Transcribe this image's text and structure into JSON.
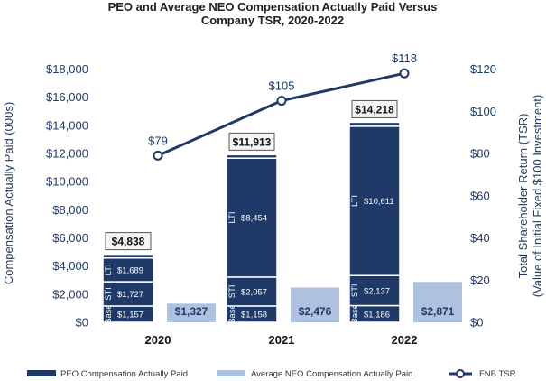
{
  "chart_data": {
    "type": "bar",
    "title_lines": [
      "PEO and Average NEO Compensation Actually Paid Versus",
      "Company TSR, 2020-2022"
    ],
    "categories": [
      "2020",
      "2021",
      "2022"
    ],
    "ylabel": "Compensation Actually Paid (000s)",
    "y2label_lines": [
      "Total Shareholder Return (TSR)",
      "(Value of Initial Fixed $100 Investment)"
    ],
    "ylim": [
      0,
      18000
    ],
    "y2lim": [
      0,
      120
    ],
    "yticks": [
      0,
      2000,
      4000,
      6000,
      8000,
      10000,
      12000,
      14000,
      16000,
      18000
    ],
    "ytick_labels": [
      "$0",
      "$2,000",
      "$4,000",
      "$6,000",
      "$8,000",
      "$10,000",
      "$12,000",
      "$14,000",
      "$16,000",
      "$18,000"
    ],
    "y2ticks": [
      0,
      20,
      40,
      60,
      80,
      100,
      120
    ],
    "y2tick_labels": [
      "$0",
      "$20",
      "$40",
      "$60",
      "$80",
      "$100",
      "$120"
    ],
    "peo_stack": {
      "name": "PEO Compensation Actually Paid",
      "components": [
        {
          "label": "Base",
          "values": [
            1157,
            1158,
            1186
          ],
          "value_labels": [
            "$1,157",
            "$1,158",
            "$1,186"
          ]
        },
        {
          "label": "STI",
          "values": [
            1727,
            2057,
            2137
          ],
          "value_labels": [
            "$1,727",
            "$2,057",
            "$2,137"
          ]
        },
        {
          "label": "LTI",
          "values": [
            1689,
            8454,
            10611
          ],
          "value_labels": [
            "$1,689",
            "$8,454",
            "$10,611"
          ]
        },
        {
          "label": "",
          "values": [
            265,
            244,
            284
          ],
          "value_labels": [
            "",
            "",
            ""
          ]
        }
      ],
      "totals": [
        4838,
        11913,
        14218
      ],
      "total_labels": [
        "$4,838",
        "$11,913",
        "$14,218"
      ]
    },
    "neo_series": {
      "name": "Average NEO Compensation Actually Paid",
      "values": [
        1327,
        2476,
        2871
      ],
      "value_labels": [
        "$1,327",
        "$2,476",
        "$2,871"
      ]
    },
    "tsr_series": {
      "name": "FNB TSR",
      "values": [
        79,
        105,
        118
      ],
      "value_labels": [
        "$79",
        "$105",
        "$118"
      ]
    },
    "colors": {
      "peo": "#1f3a68",
      "neo": "#aec2e0",
      "tsr": "#1f3a68",
      "text": "#1f3a68"
    },
    "legend_position": "bottom"
  }
}
